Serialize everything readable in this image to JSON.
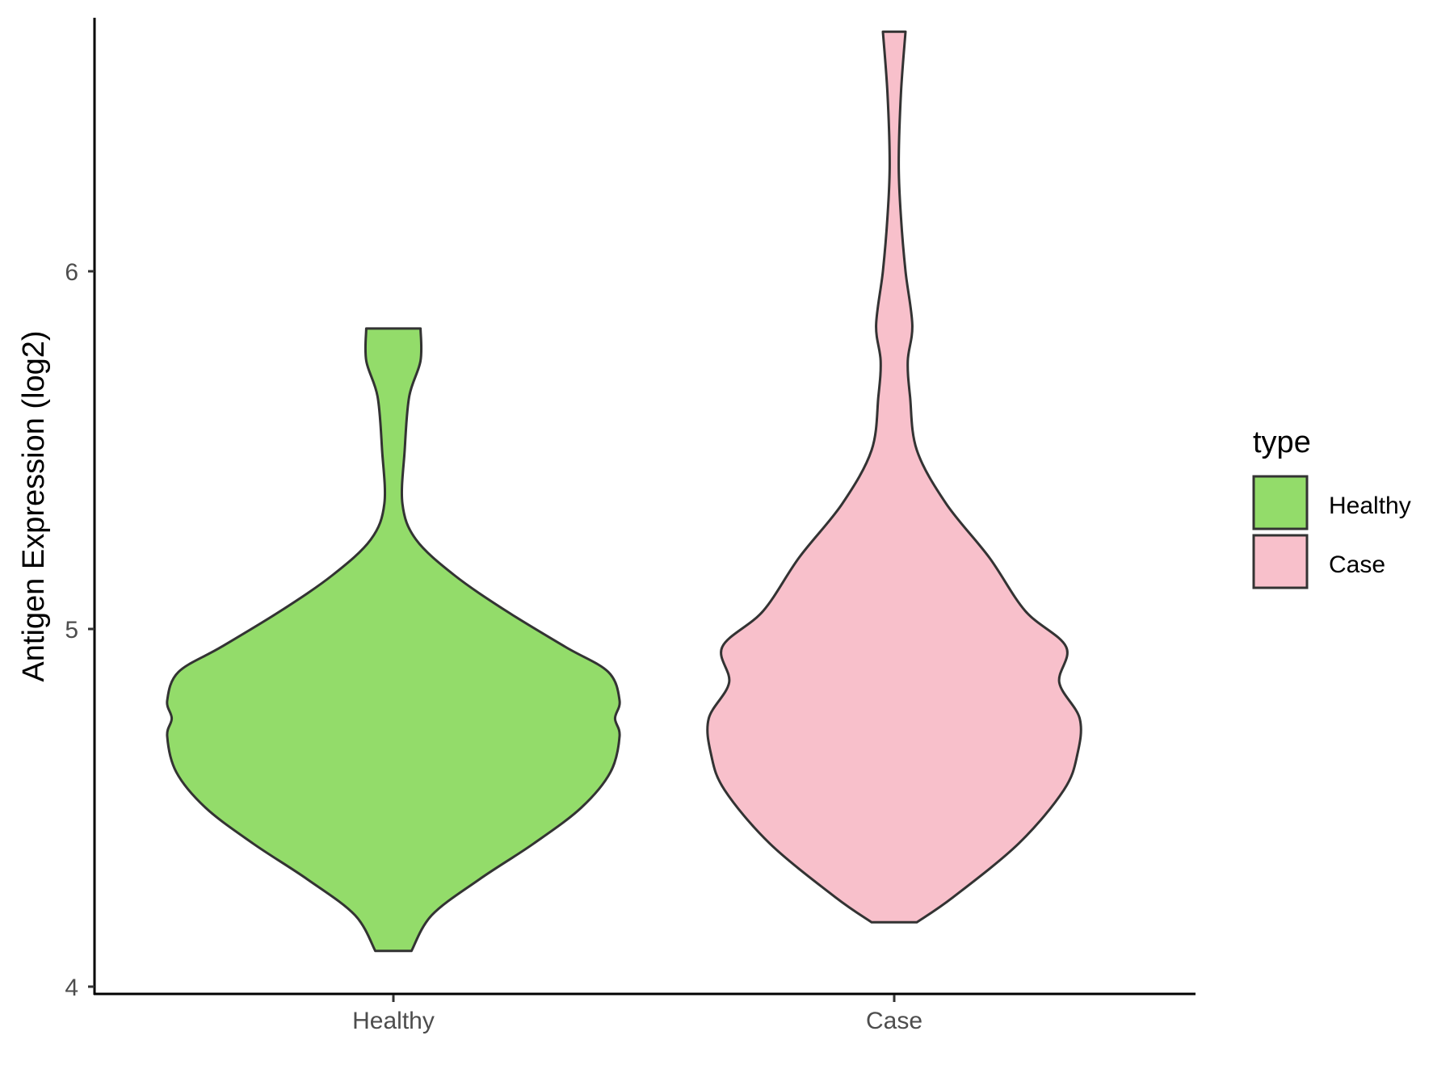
{
  "chart_data": {
    "type": "violin",
    "title": "",
    "xlabel": "",
    "ylabel": "Antigen Expression (log2)",
    "categories": [
      "Healthy",
      "Case"
    ],
    "y_ticks": [
      "4",
      "5",
      "6"
    ],
    "ylim": [
      4.0,
      6.7
    ],
    "grid": false,
    "legend": {
      "title": "type",
      "position": "right",
      "entries": [
        "Healthy",
        "Case"
      ]
    },
    "series": [
      {
        "name": "Healthy",
        "color": "#93dc6a",
        "range": [
          4.1,
          5.84
        ],
        "density_profile": [
          [
            4.1,
            0.08
          ],
          [
            4.2,
            0.17
          ],
          [
            4.3,
            0.38
          ],
          [
            4.4,
            0.62
          ],
          [
            4.5,
            0.83
          ],
          [
            4.6,
            0.96
          ],
          [
            4.7,
            1.0
          ],
          [
            4.75,
            0.98
          ],
          [
            4.8,
            1.0
          ],
          [
            4.88,
            0.95
          ],
          [
            4.95,
            0.76
          ],
          [
            5.05,
            0.5
          ],
          [
            5.15,
            0.27
          ],
          [
            5.25,
            0.1
          ],
          [
            5.35,
            0.04
          ],
          [
            5.5,
            0.05
          ],
          [
            5.65,
            0.07
          ],
          [
            5.75,
            0.12
          ],
          [
            5.84,
            0.12
          ]
        ]
      },
      {
        "name": "Case",
        "color": "#f8c0cb",
        "range": [
          4.18,
          6.67
        ],
        "density_profile": [
          [
            4.18,
            0.1
          ],
          [
            4.25,
            0.26
          ],
          [
            4.4,
            0.55
          ],
          [
            4.55,
            0.75
          ],
          [
            4.65,
            0.81
          ],
          [
            4.75,
            0.82
          ],
          [
            4.85,
            0.73
          ],
          [
            4.95,
            0.76
          ],
          [
            5.05,
            0.58
          ],
          [
            5.2,
            0.42
          ],
          [
            5.35,
            0.23
          ],
          [
            5.5,
            0.1
          ],
          [
            5.65,
            0.07
          ],
          [
            5.75,
            0.06
          ],
          [
            5.85,
            0.08
          ],
          [
            6.0,
            0.05
          ],
          [
            6.15,
            0.03
          ],
          [
            6.3,
            0.02
          ],
          [
            6.5,
            0.03
          ],
          [
            6.67,
            0.05
          ]
        ]
      }
    ]
  }
}
